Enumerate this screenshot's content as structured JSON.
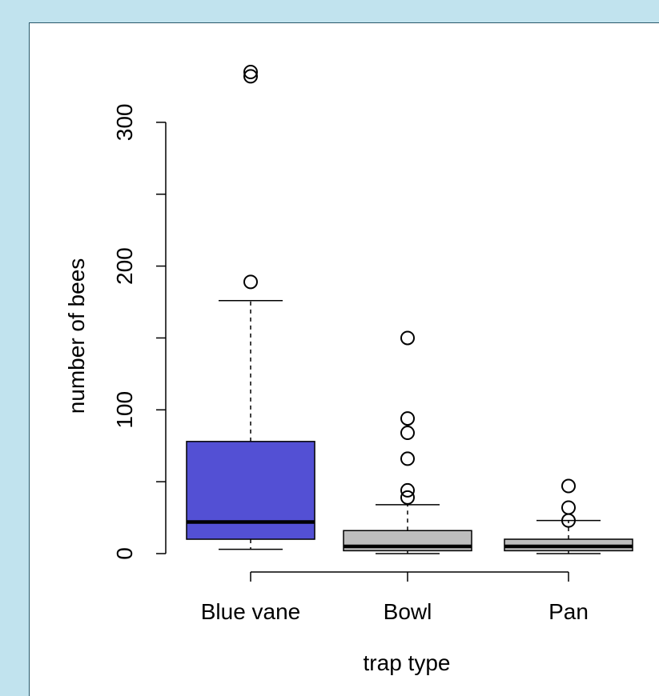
{
  "chart_data": {
    "type": "boxplot",
    "xlabel": "trap type",
    "ylabel": "number of bees",
    "ylim": [
      0,
      340
    ],
    "yticks": [
      0,
      100,
      200,
      300
    ],
    "yticks_minor": [
      50,
      150,
      250
    ],
    "grid": false,
    "categories": [
      "Blue vane",
      "Bowl",
      "Pan"
    ],
    "boxes": [
      {
        "label": "Blue vane",
        "color": "#5350d4",
        "whisker_low": 3,
        "q1": 10,
        "median": 22,
        "q3": 78,
        "whisker_high": 176,
        "outliers": [
          189,
          332,
          335
        ]
      },
      {
        "label": "Bowl",
        "color": "#bebebe",
        "whisker_low": 0,
        "q1": 2,
        "median": 5,
        "q3": 16,
        "whisker_high": 34,
        "outliers": [
          39,
          44,
          66,
          84,
          94,
          150
        ]
      },
      {
        "label": "Pan",
        "color": "#bebebe",
        "whisker_low": 0,
        "q1": 2,
        "median": 5,
        "q3": 10,
        "whisker_high": 23,
        "outliers": [
          23,
          32,
          47
        ]
      }
    ]
  }
}
